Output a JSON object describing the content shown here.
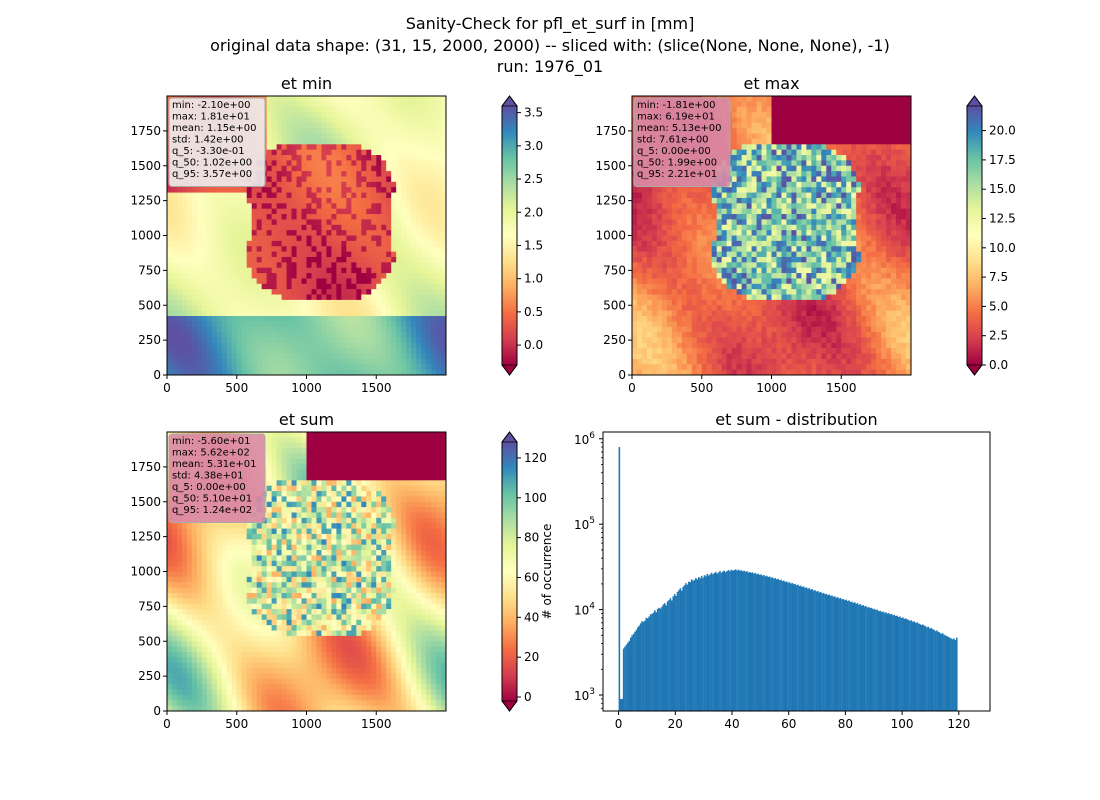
{
  "figure": {
    "title_lines": [
      "Sanity-Check for pfl_et_surf in [mm]",
      "original data shape: (31, 15, 2000, 2000) -- sliced with: (slice(None, None, None), -1)",
      "run: 1976_01"
    ]
  },
  "chart_data": [
    {
      "type": "heatmap",
      "title": "et min",
      "xlim": [
        0,
        2000
      ],
      "ylim": [
        0,
        2000
      ],
      "xticks": [
        "0",
        "500",
        "1000",
        "1500"
      ],
      "yticks": [
        "0",
        "250",
        "500",
        "750",
        "1000",
        "1250",
        "1500",
        "1750"
      ],
      "colormap": "Spectral",
      "colorbar": {
        "vmin": -0.3,
        "vmax": 3.6,
        "extend": "both",
        "ticks": [
          "0.0",
          "0.5",
          "1.0",
          "1.5",
          "2.0",
          "2.5",
          "3.0",
          "3.5"
        ]
      },
      "stats": [
        "min: -2.10e+00",
        "max: 1.81e+01",
        "mean: 1.15e+00",
        "std: 1.42e+00",
        "q_5: -3.30e-01",
        "q_50: 1.02e+00",
        "q_95: 3.57e+00"
      ],
      "stats_box_color": "#eeeeee"
    },
    {
      "type": "heatmap",
      "title": "et max",
      "xlim": [
        0,
        2000
      ],
      "ylim": [
        0,
        2000
      ],
      "xticks": [
        "0",
        "500",
        "1000",
        "1500"
      ],
      "yticks": [
        "0",
        "250",
        "500",
        "750",
        "1000",
        "1250",
        "1500",
        "1750"
      ],
      "colormap": "Spectral",
      "colorbar": {
        "vmin": 0.0,
        "vmax": 22.1,
        "extend": "both",
        "ticks": [
          "0.0",
          "2.5",
          "5.0",
          "7.5",
          "10.0",
          "12.5",
          "15.0",
          "17.5",
          "20.0"
        ]
      },
      "stats": [
        "min: -1.81e+00",
        "max: 6.19e+01",
        "mean: 5.13e+00",
        "std: 7.61e+00",
        "q_5: 0.00e+00",
        "q_50: 1.99e+00",
        "q_95: 2.21e+01"
      ],
      "stats_box_color": "#d98aa6"
    },
    {
      "type": "heatmap",
      "title": "et sum",
      "xlim": [
        0,
        2000
      ],
      "ylim": [
        0,
        2000
      ],
      "xticks": [
        "0",
        "500",
        "1000",
        "1500"
      ],
      "yticks": [
        "0",
        "250",
        "500",
        "750",
        "1000",
        "1250",
        "1500",
        "1750"
      ],
      "colormap": "Spectral",
      "colorbar": {
        "vmin": -2,
        "vmax": 128,
        "extend": "both",
        "ticks": [
          "0",
          "20",
          "40",
          "60",
          "80",
          "100",
          "120"
        ]
      },
      "stats": [
        "min: -5.60e+01",
        "max: 5.62e+02",
        "mean: 5.31e+01",
        "std: 4.38e+01",
        "q_5: 0.00e+00",
        "q_50: 5.10e+01",
        "q_95: 1.24e+02"
      ],
      "stats_box_color": "#d98aa6"
    },
    {
      "type": "bar",
      "title": "et sum - distribution",
      "xlabel": "",
      "ylabel": "# of occurrence",
      "yscale": "log",
      "xlim": [
        -5.5,
        131
      ],
      "ylim": [
        650,
        1200000
      ],
      "xticks": [
        0,
        20,
        40,
        60,
        80,
        100,
        120
      ],
      "yticks": [
        {
          "v": 1000,
          "label": "10",
          "exp": "3"
        },
        {
          "v": 10000,
          "label": "10",
          "exp": "4"
        },
        {
          "v": 100000,
          "label": "10",
          "exp": "5"
        },
        {
          "v": 1000000,
          "label": "10",
          "exp": "6"
        }
      ],
      "bar_color": "#1f77b4",
      "bin_start": 0,
      "bin_width": 0.5,
      "counts": [
        800000,
        900,
        900,
        3500,
        3700,
        3900,
        4100,
        4300,
        4700,
        5000,
        5200,
        5500,
        5800,
        6200,
        6500,
        6900,
        7300,
        7200,
        7400,
        8000,
        7900,
        8300,
        8800,
        8900,
        9200,
        9800,
        9300,
        10200,
        10500,
        10300,
        10800,
        11500,
        11900,
        11200,
        12500,
        12900,
        13600,
        12800,
        14300,
        15200,
        14500,
        16100,
        16900,
        17800,
        16700,
        18500,
        19300,
        20400,
        19600,
        21200,
        21000,
        22600,
        21800,
        22300,
        23400,
        22600,
        24100,
        23200,
        24800,
        23600,
        25300,
        24500,
        26200,
        25100,
        25800,
        27000,
        25900,
        26800,
        27600,
        26400,
        27300,
        28200,
        27000,
        27900,
        28600,
        27500,
        28300,
        29100,
        28200,
        29400,
        28500,
        29000,
        29600,
        28800,
        29300,
        28600,
        28900,
        28100,
        28500,
        27800,
        28200,
        27200,
        27600,
        26900,
        27300,
        26400,
        26800,
        25900,
        26300,
        25500,
        25800,
        25000,
        25400,
        24500,
        24900,
        24100,
        24400,
        23600,
        23900,
        23100,
        23400,
        22600,
        22900,
        22100,
        22400,
        21600,
        21900,
        21100,
        21400,
        20700,
        20900,
        20200,
        20500,
        19800,
        20000,
        19300,
        19600,
        18900,
        19100,
        18400,
        18700,
        18000,
        18200,
        17600,
        17800,
        17100,
        17400,
        16700,
        16900,
        16300,
        16500,
        15900,
        16100,
        15500,
        15700,
        15200,
        15300,
        14800,
        15000,
        14500,
        14600,
        14200,
        14300,
        13800,
        14000,
        13500,
        13700,
        13200,
        13300,
        12900,
        13100,
        12600,
        12800,
        12300,
        12400,
        12000,
        12200,
        11700,
        11900,
        11400,
        11600,
        11100,
        11300,
        10900,
        11000,
        10600,
        10700,
        10400,
        10500,
        10100,
        10200,
        9900,
        10000,
        9600,
        9700,
        9400,
        9500,
        9200,
        9300,
        9000,
        9100,
        8800,
        8900,
        8600,
        8700,
        8400,
        8500,
        8200,
        8300,
        8000,
        8100,
        7800,
        7900,
        7700,
        7600,
        7400,
        7500,
        7200,
        7300,
        7000,
        7100,
        6900,
        6800,
        6600,
        6700,
        6500,
        6400,
        6200,
        6300,
        6000,
        6100,
        5900,
        5800,
        5600,
        5700,
        5500,
        5400,
        5200,
        5300,
        5100,
        5000,
        4900,
        4800,
        4700,
        4600,
        4500,
        4600,
        4400,
        4700
      ]
    }
  ]
}
